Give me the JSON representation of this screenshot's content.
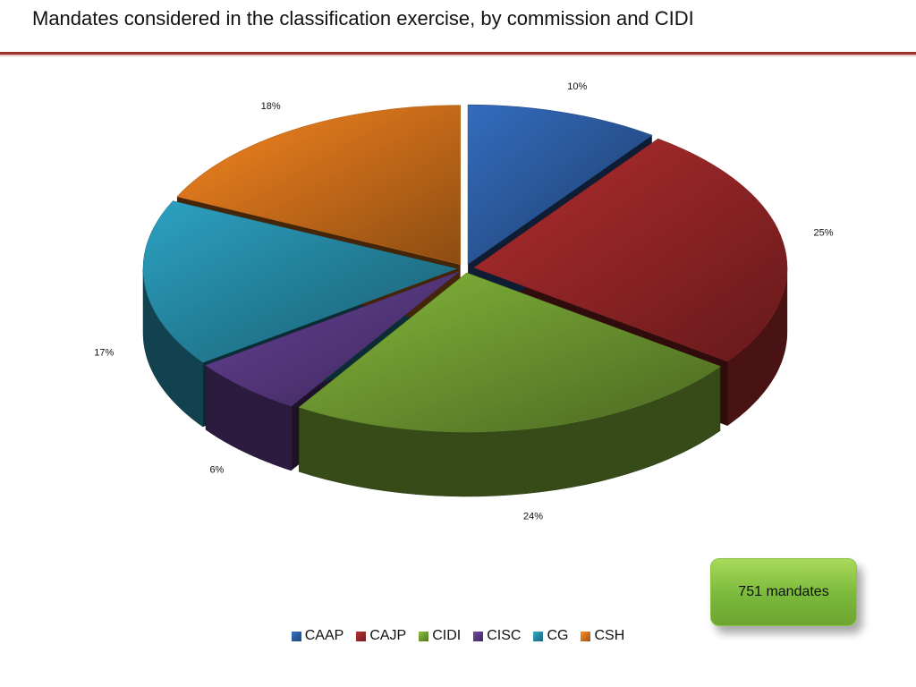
{
  "title": "Mandates considered in the classification exercise, by commission and CIDI",
  "callout": "751 mandates",
  "chart_data": {
    "type": "pie",
    "categories": [
      "CAAP",
      "CAJP",
      "CIDI",
      "CISC",
      "CG",
      "CSH"
    ],
    "values": [
      10,
      25,
      24,
      6,
      17,
      18
    ],
    "labels": [
      "10%",
      "25%",
      "24%",
      "6%",
      "17%",
      "18%"
    ],
    "colors": [
      "#2f62ad",
      "#a3292b",
      "#78a635",
      "#5f3d8c",
      "#2893b0",
      "#e27a1d"
    ],
    "legend_position": "bottom",
    "exploded": true,
    "three_d": true
  }
}
